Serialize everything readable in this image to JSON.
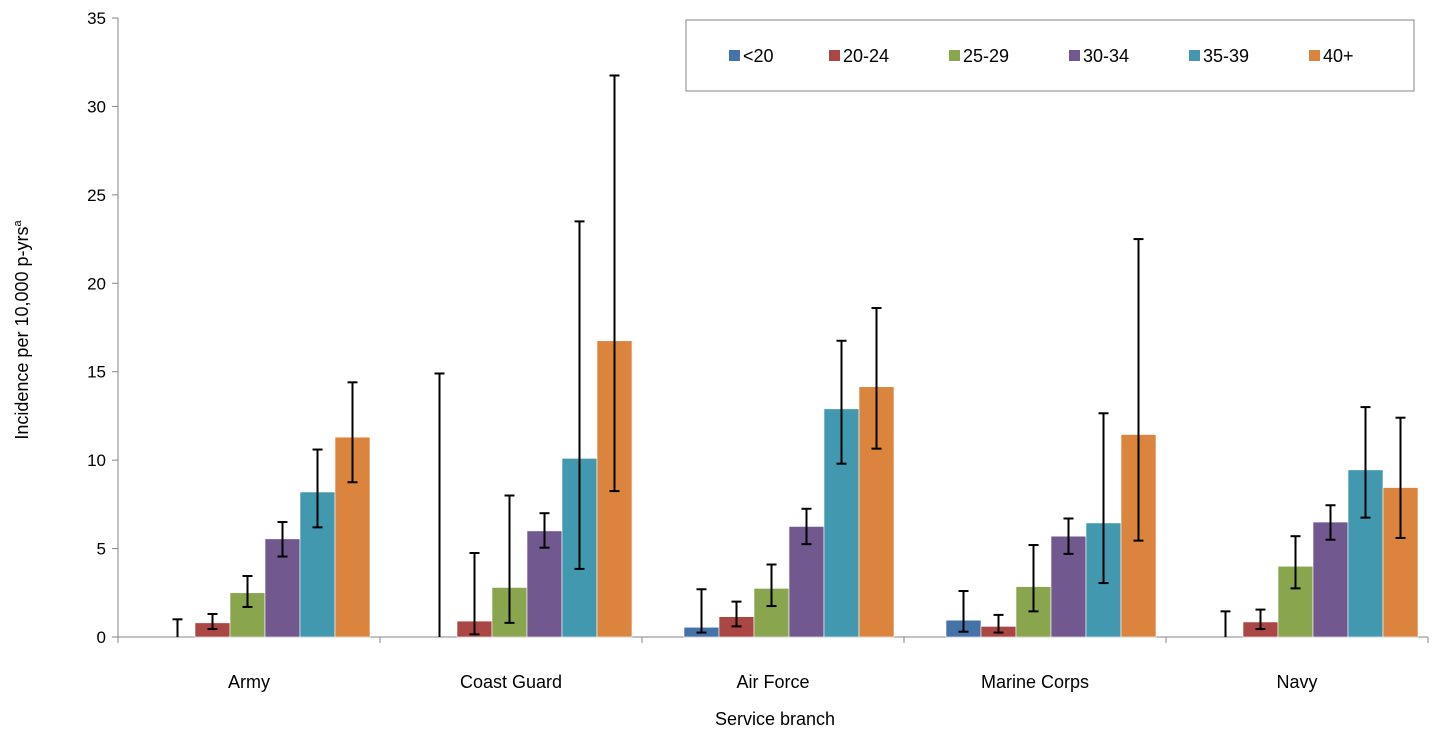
{
  "chart_data": {
    "type": "bar",
    "title": "",
    "xlabel": "Service branch",
    "ylabel": "Incidence per 10,000 p-yrs",
    "ylabel_superscript": "a",
    "ylim": [
      0,
      35
    ],
    "yticks": [
      "0",
      "5",
      "10",
      "15",
      "20",
      "25",
      "30",
      "35"
    ],
    "grid": false,
    "legend_position": "top-right",
    "error_bars": true,
    "categories": [
      "Army",
      "Coast Guard",
      "Air Force",
      "Marine Corps",
      "Navy"
    ],
    "series": [
      {
        "name": "<20",
        "color": "#4572A7",
        "values": [
          0,
          0,
          0.55,
          0.95,
          0
        ],
        "lower": [
          0,
          0,
          0.25,
          0.3,
          0
        ],
        "upper": [
          1.0,
          14.9,
          2.7,
          2.6,
          1.45
        ]
      },
      {
        "name": "20-24",
        "color": "#AA4643",
        "values": [
          0.8,
          0.9,
          1.15,
          0.6,
          0.85
        ],
        "lower": [
          0.45,
          0.15,
          0.6,
          0.25,
          0.45
        ],
        "upper": [
          1.3,
          4.75,
          2.0,
          1.25,
          1.55
        ]
      },
      {
        "name": "25-29",
        "color": "#89A54E",
        "values": [
          2.5,
          2.8,
          2.75,
          2.85,
          4.0
        ],
        "lower": [
          1.7,
          0.8,
          1.75,
          1.45,
          2.75
        ],
        "upper": [
          3.45,
          8.0,
          4.1,
          5.2,
          5.7
        ]
      },
      {
        "name": "30-34",
        "color": "#71588F",
        "values": [
          5.55,
          6.0,
          6.25,
          5.7,
          6.5
        ],
        "lower": [
          4.55,
          5.05,
          5.25,
          4.7,
          5.5
        ],
        "upper": [
          6.5,
          7.0,
          7.25,
          6.7,
          7.45
        ]
      },
      {
        "name": "35-39",
        "color": "#4198AF",
        "values": [
          8.2,
          10.1,
          12.9,
          6.45,
          9.45
        ],
        "lower": [
          6.2,
          3.85,
          9.8,
          3.05,
          6.75
        ],
        "upper": [
          10.6,
          23.5,
          16.75,
          12.65,
          13.0
        ]
      },
      {
        "name": "40+",
        "color": "#DB843D",
        "values": [
          11.3,
          16.75,
          14.15,
          11.45,
          8.45
        ],
        "lower": [
          8.75,
          8.25,
          10.65,
          5.45,
          5.6
        ],
        "upper": [
          14.4,
          31.75,
          18.6,
          22.5,
          12.4
        ]
      }
    ]
  }
}
